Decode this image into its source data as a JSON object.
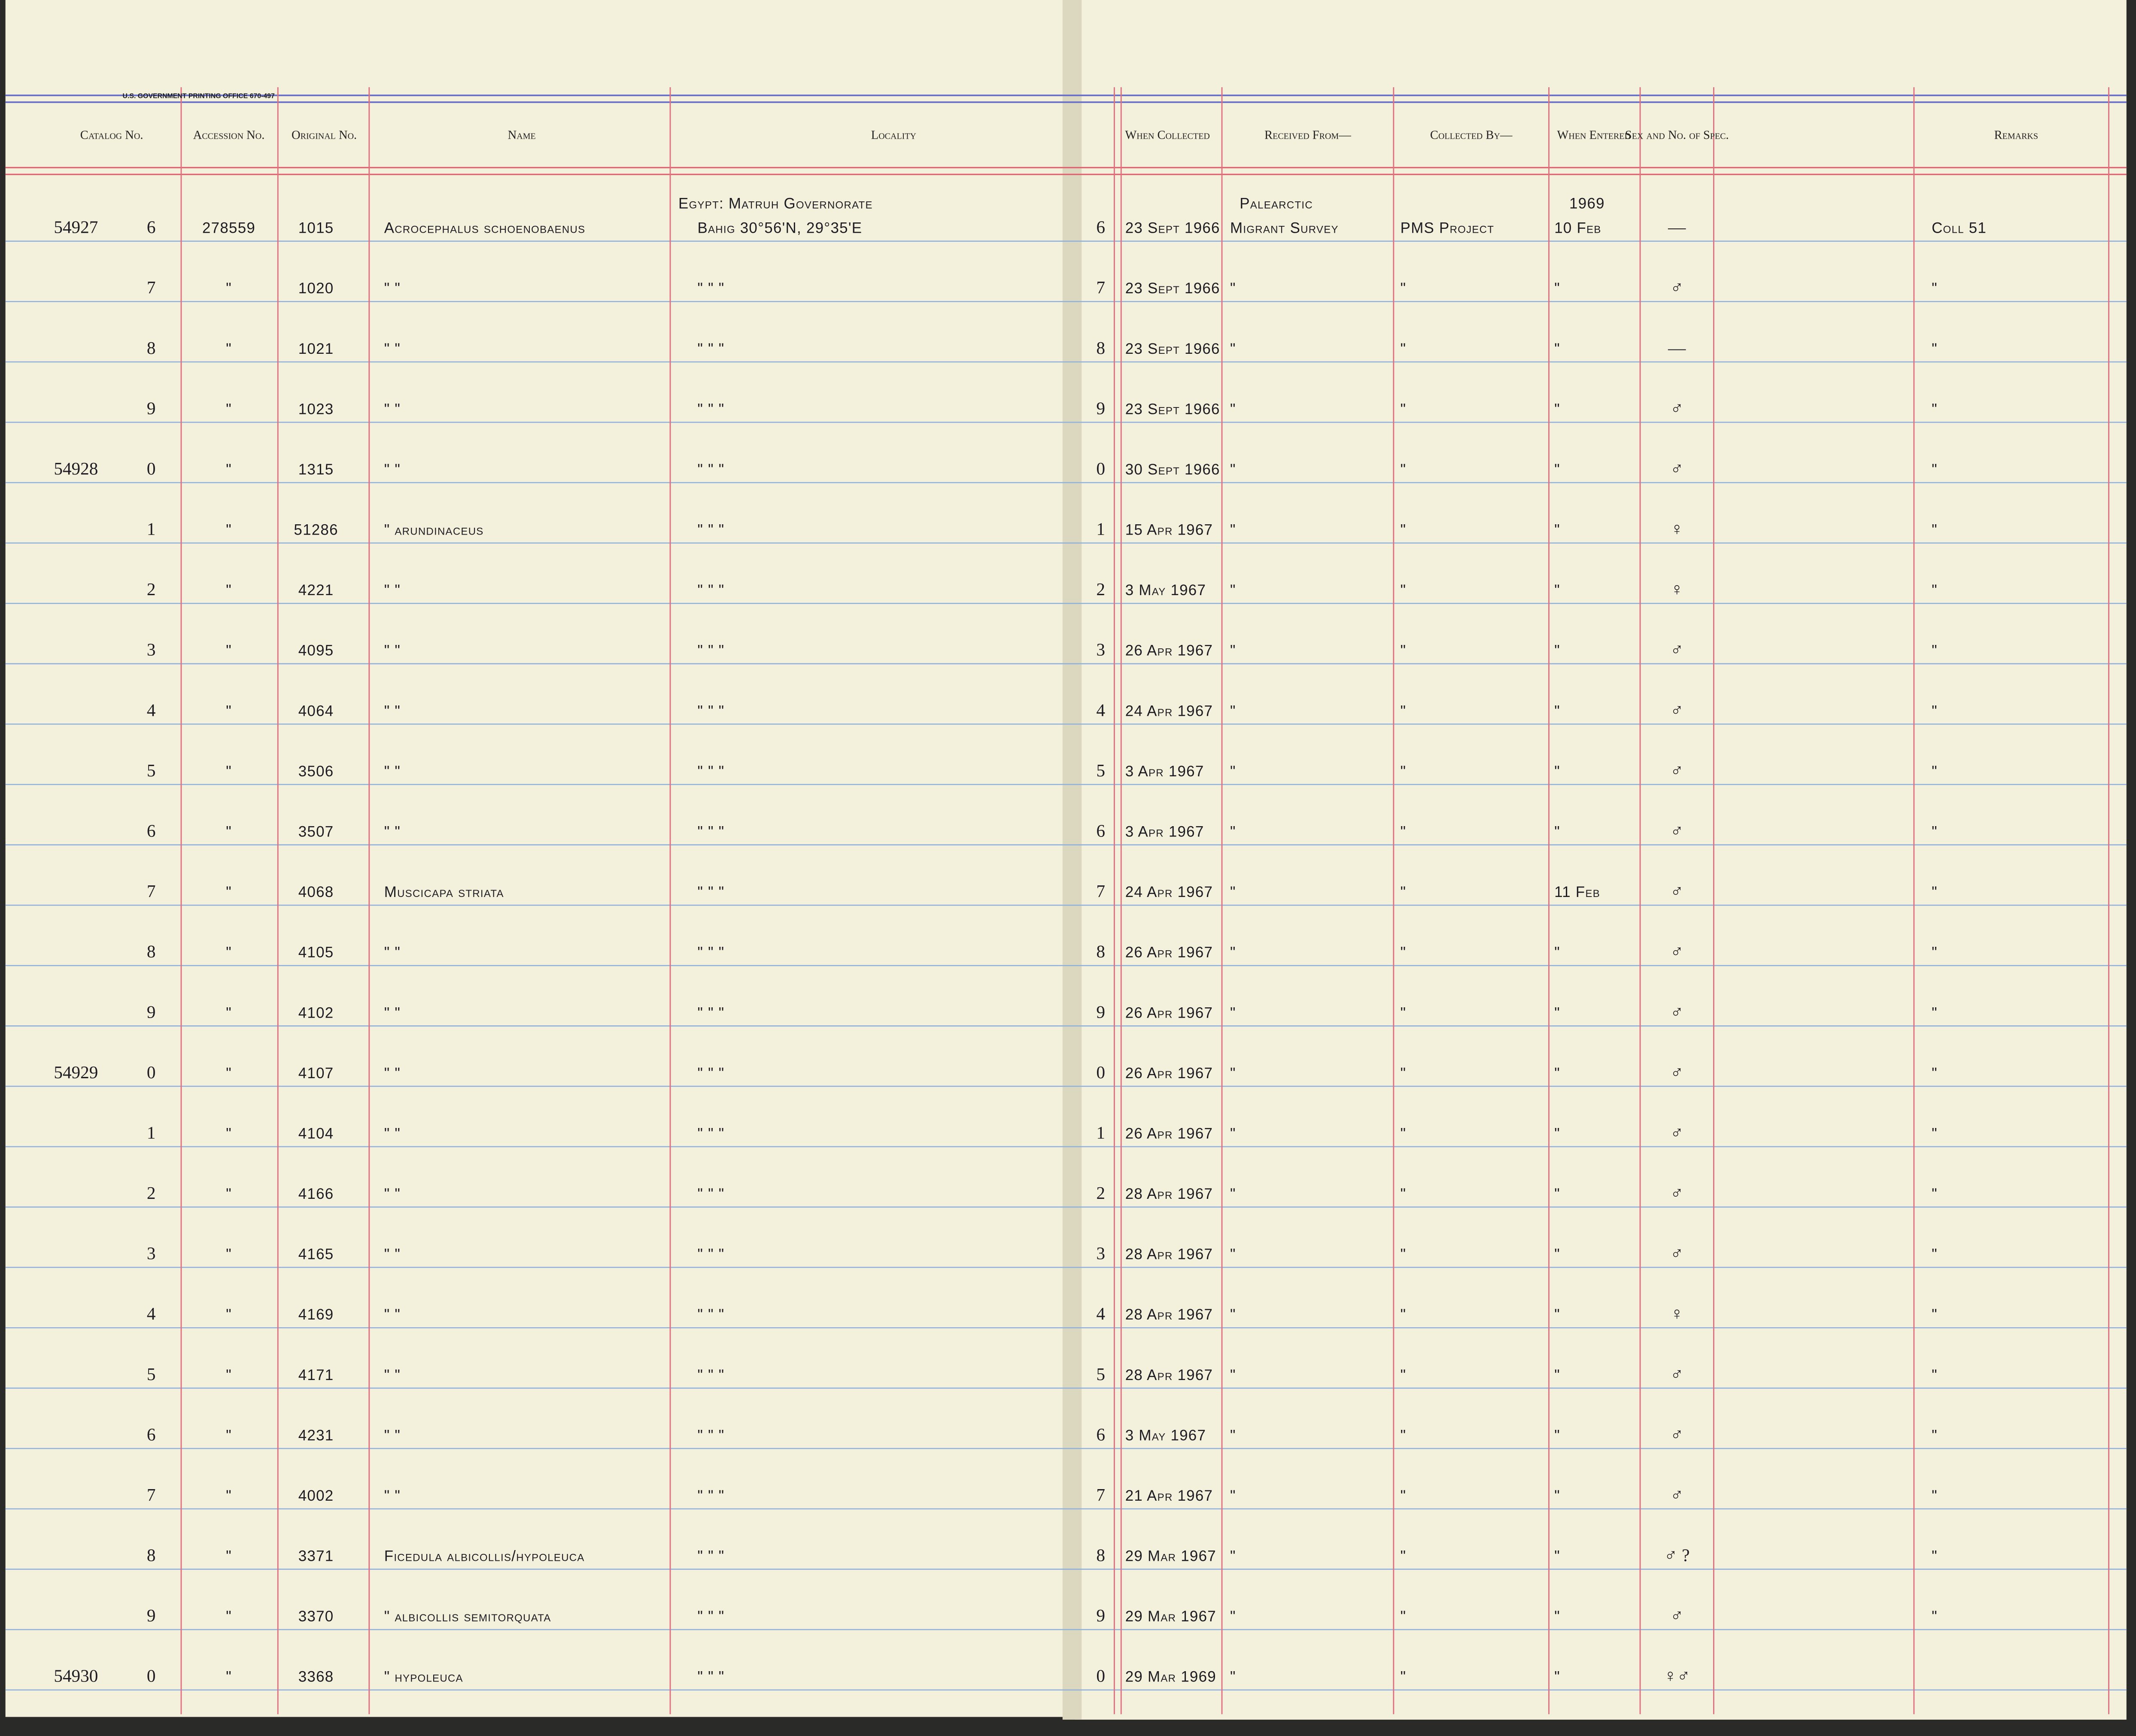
{
  "header": {
    "printer": "U.S. GOVERNMENT PRINTING OFFICE 670-497",
    "columns": [
      "Catalog No.",
      "Accession No.",
      "Original No.",
      "Name",
      "Locality",
      "When Collected",
      "Received From—",
      "Collected By—",
      "When Entered",
      "Sex and No. of Spec.",
      "Remarks"
    ]
  },
  "rows": [
    {
      "catalog": "54927",
      "digit": "6",
      "accession": "278559",
      "original": "1015",
      "name": "Acrocephalus schoenobaenus",
      "locality_note": "Egypt: Matruh Governorate",
      "locality": "Bahig 30°56'N, 29°35'E",
      "line": "6",
      "collected": "23 Sept 1966",
      "received_note": "Palearctic",
      "received": "Migrant Survey",
      "collected_by": "PMS Project",
      "entered_note": "1969",
      "entered": "10 Feb",
      "sex": "—",
      "remarks": "Coll 51"
    },
    {
      "digit": "7",
      "accession": "\"",
      "original": "1020",
      "name": "\"   \"",
      "locality": "\"   \"   \"",
      "line": "7",
      "collected": "23 Sept 1966",
      "received": "\"",
      "collected_by": "\"",
      "entered": "\"",
      "sex": "♂",
      "remarks": "\""
    },
    {
      "digit": "8",
      "accession": "\"",
      "original": "1021",
      "name": "\"   \"",
      "locality": "\"   \"   \"",
      "line": "8",
      "collected": "23 Sept 1966",
      "received": "\"",
      "collected_by": "\"",
      "entered": "\"",
      "sex": "—",
      "remarks": "\""
    },
    {
      "digit": "9",
      "accession": "\"",
      "original": "1023",
      "name": "\"   \"",
      "locality": "\"   \"   \"",
      "line": "9",
      "collected": "23 Sept 1966",
      "received": "\"",
      "collected_by": "\"",
      "entered": "\"",
      "sex": "♂",
      "remarks": "\""
    },
    {
      "catalog": "54928",
      "digit": "0",
      "accession": "\"",
      "original": "1315",
      "name": "\"   \"",
      "locality": "\"   \"   \"",
      "line": "0",
      "collected": "30 Sept 1966",
      "received": "\"",
      "collected_by": "\"",
      "entered": "\"",
      "sex": "♂",
      "remarks": "\""
    },
    {
      "digit": "1",
      "accession": "\"",
      "original": "51286",
      "name": "\"   arundinaceus",
      "locality": "\"   \"   \"",
      "line": "1",
      "collected": "15 Apr 1967",
      "received": "\"",
      "collected_by": "\"",
      "entered": "\"",
      "sex": "♀",
      "remarks": "\""
    },
    {
      "digit": "2",
      "accession": "\"",
      "original": "4221",
      "name": "\"   \"",
      "locality": "\"   \"   \"",
      "line": "2",
      "collected": "3 May 1967",
      "received": "\"",
      "collected_by": "\"",
      "entered": "\"",
      "sex": "♀",
      "remarks": "\""
    },
    {
      "digit": "3",
      "accession": "\"",
      "original": "4095",
      "name": "\"   \"",
      "locality": "\"   \"   \"",
      "line": "3",
      "collected": "26 Apr 1967",
      "received": "\"",
      "collected_by": "\"",
      "entered": "\"",
      "sex": "♂",
      "remarks": "\""
    },
    {
      "digit": "4",
      "accession": "\"",
      "original": "4064",
      "name": "\"   \"",
      "locality": "\"   \"   \"",
      "line": "4",
      "collected": "24 Apr 1967",
      "received": "\"",
      "collected_by": "\"",
      "entered": "\"",
      "sex": "♂",
      "remarks": "\""
    },
    {
      "digit": "5",
      "accession": "\"",
      "original": "3506",
      "name": "\"   \"",
      "locality": "\"   \"   \"",
      "line": "5",
      "collected": "3 Apr 1967",
      "received": "\"",
      "collected_by": "\"",
      "entered": "\"",
      "sex": "♂",
      "remarks": "\""
    },
    {
      "digit": "6",
      "accession": "\"",
      "original": "3507",
      "name": "\"   \"",
      "locality": "\"   \"   \"",
      "line": "6",
      "collected": "3 Apr 1967",
      "received": "\"",
      "collected_by": "\"",
      "entered": "\"",
      "sex": "♂",
      "remarks": "\""
    },
    {
      "digit": "7",
      "accession": "\"",
      "original": "4068",
      "name": "Muscicapa striata",
      "locality": "\"   \"   \"",
      "line": "7",
      "collected": "24 Apr 1967",
      "received": "\"",
      "collected_by": "\"",
      "entered": "11 Feb",
      "sex": "♂",
      "remarks": "\""
    },
    {
      "digit": "8",
      "accession": "\"",
      "original": "4105",
      "name": "\"   \"",
      "locality": "\"   \"   \"",
      "line": "8",
      "collected": "26 Apr 1967",
      "received": "\"",
      "collected_by": "\"",
      "entered": "\"",
      "sex": "♂",
      "remarks": "\""
    },
    {
      "digit": "9",
      "accession": "\"",
      "original": "4102",
      "name": "\"   \"",
      "locality": "\"   \"   \"",
      "line": "9",
      "collected": "26 Apr 1967",
      "received": "\"",
      "collected_by": "\"",
      "entered": "\"",
      "sex": "♂",
      "remarks": "\""
    },
    {
      "catalog": "54929",
      "digit": "0",
      "accession": "\"",
      "original": "4107",
      "name": "\"   \"",
      "locality": "\"   \"   \"",
      "line": "0",
      "collected": "26 Apr 1967",
      "received": "\"",
      "collected_by": "\"",
      "entered": "\"",
      "sex": "♂",
      "remarks": "\""
    },
    {
      "digit": "1",
      "accession": "\"",
      "original": "4104",
      "name": "\"   \"",
      "locality": "\"   \"   \"",
      "line": "1",
      "collected": "26 Apr 1967",
      "received": "\"",
      "collected_by": "\"",
      "entered": "\"",
      "sex": "♂",
      "remarks": "\""
    },
    {
      "digit": "2",
      "accession": "\"",
      "original": "4166",
      "name": "\"   \"",
      "locality": "\"   \"   \"",
      "line": "2",
      "collected": "28 Apr 1967",
      "received": "\"",
      "collected_by": "\"",
      "entered": "\"",
      "sex": "♂",
      "remarks": "\""
    },
    {
      "digit": "3",
      "accession": "\"",
      "original": "4165",
      "name": "\"   \"",
      "locality": "\"   \"   \"",
      "line": "3",
      "collected": "28 Apr 1967",
      "received": "\"",
      "collected_by": "\"",
      "entered": "\"",
      "sex": "♂",
      "remarks": "\""
    },
    {
      "digit": "4",
      "accession": "\"",
      "original": "4169",
      "name": "\"   \"",
      "locality": "\"   \"   \"",
      "line": "4",
      "collected": "28 Apr 1967",
      "received": "\"",
      "collected_by": "\"",
      "entered": "\"",
      "sex": "♀",
      "remarks": "\""
    },
    {
      "digit": "5",
      "accession": "\"",
      "original": "4171",
      "name": "\"   \"",
      "locality": "\"   \"   \"",
      "line": "5",
      "collected": "28 Apr 1967",
      "received": "\"",
      "collected_by": "\"",
      "entered": "\"",
      "sex": "♂",
      "remarks": "\""
    },
    {
      "digit": "6",
      "accession": "\"",
      "original": "4231",
      "name": "\"   \"",
      "locality": "\"   \"   \"",
      "line": "6",
      "collected": "3 May 1967",
      "received": "\"",
      "collected_by": "\"",
      "entered": "\"",
      "sex": "♂",
      "remarks": "\""
    },
    {
      "digit": "7",
      "accession": "\"",
      "original": "4002",
      "name": "\"   \"",
      "locality": "\"   \"   \"",
      "line": "7",
      "collected": "21 Apr 1967",
      "received": "\"",
      "collected_by": "\"",
      "entered": "\"",
      "sex": "♂",
      "remarks": "\""
    },
    {
      "digit": "8",
      "accession": "\"",
      "original": "3371",
      "name": "Ficedula albicollis/hypoleuca",
      "locality": "\"   \"   \"",
      "line": "8",
      "collected": "29 Mar 1967",
      "received": "\"",
      "collected_by": "\"",
      "entered": "\"",
      "sex": "♂ ?",
      "remarks": "\""
    },
    {
      "digit": "9",
      "accession": "\"",
      "original": "3370",
      "name": "\"   albicollis semitorquata",
      "locality": "\"   \"   \"",
      "line": "9",
      "collected": "29 Mar 1967",
      "received": "\"",
      "collected_by": "\"",
      "entered": "\"",
      "sex": "♂",
      "remarks": "\""
    },
    {
      "catalog": "54930",
      "digit": "0",
      "accession": "\"",
      "original": "3368",
      "name": "\"   hypoleuca",
      "locality": "\"   \"   \"",
      "line": "0",
      "collected": "29 Mar 1969",
      "received": "\"",
      "collected_by": "\"",
      "entered": "\"",
      "sex": "♀♂"
    }
  ]
}
